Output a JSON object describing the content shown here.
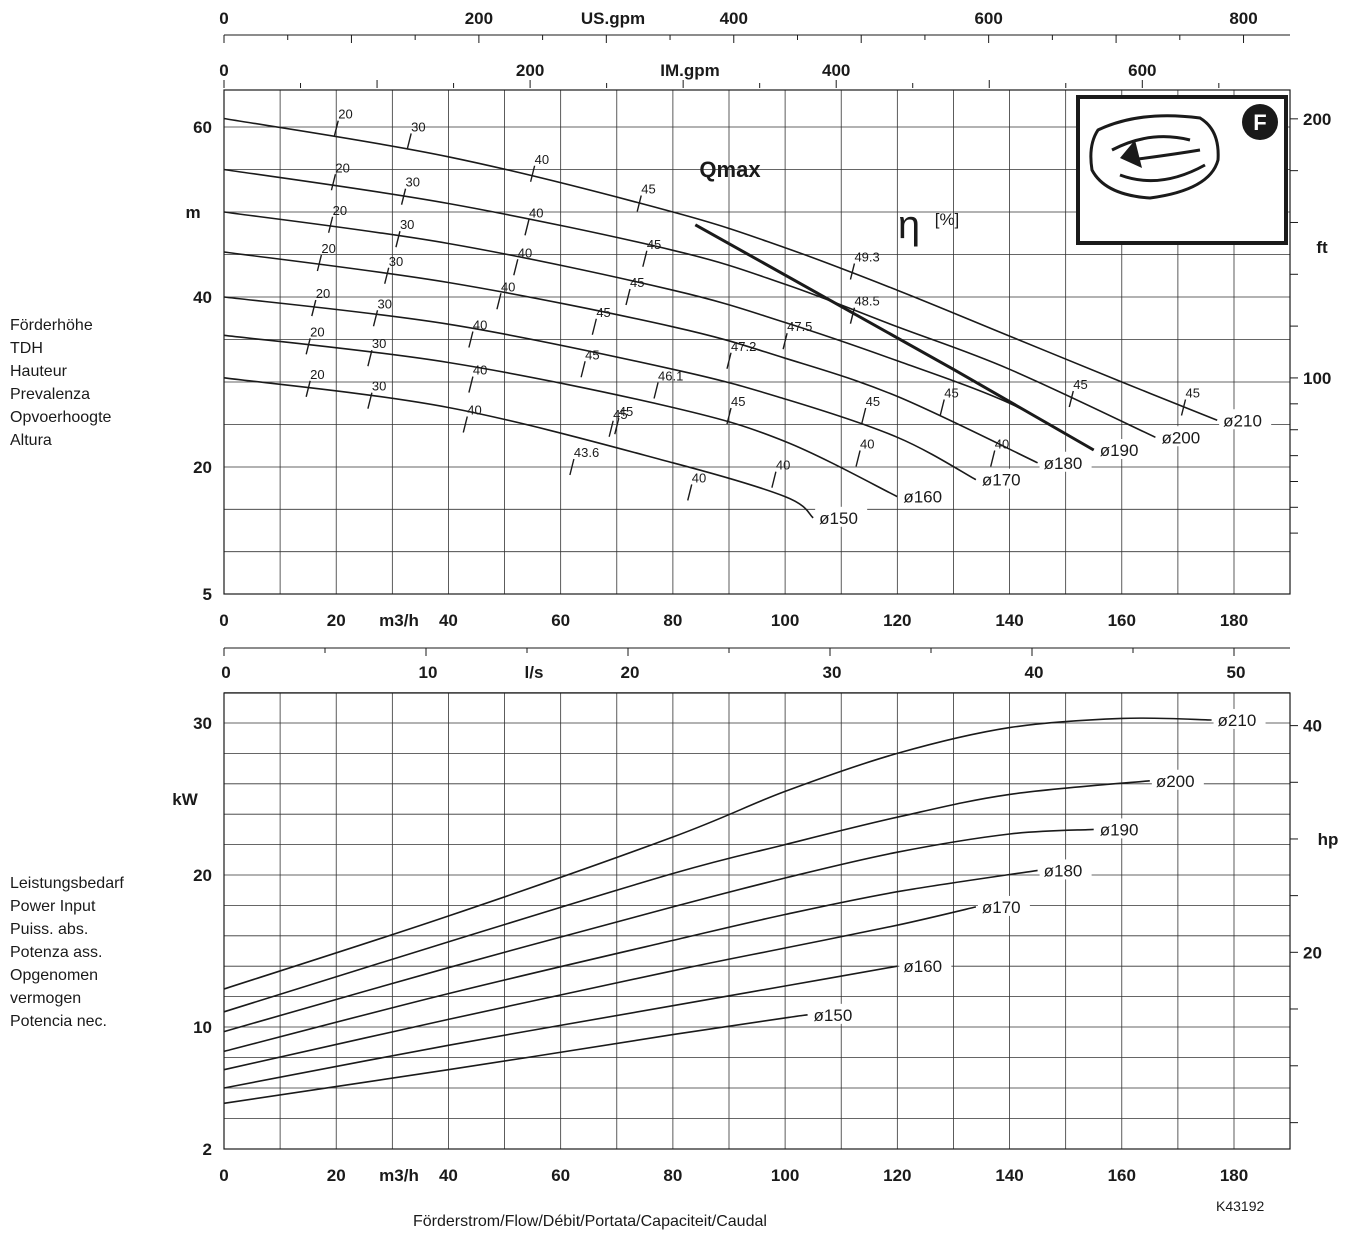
{
  "left_labels": {
    "head": [
      "Förderhöhe",
      "TDH",
      "Hauteur",
      "Prevalenza",
      "Opvoerhoogte",
      "Altura"
    ],
    "power": [
      "Leistungsbedarf",
      "Power Input",
      "Puiss. abs.",
      "Potenza ass.",
      "Opgenomen",
      "vermogen",
      "Potencia nec."
    ]
  },
  "footer": {
    "flow_label": "Förderstrom/Flow/Débit/Portata/Capaciteit/Caudal",
    "code": "K43192"
  },
  "colors": {
    "ink": "#1a1a1a",
    "grid": "#333333"
  },
  "chart_data": [
    {
      "type": "line",
      "name": "head-curves",
      "x_unit": "m3/h",
      "xlim": [
        0,
        190
      ],
      "ylim": [
        5,
        70
      ],
      "axes": {
        "bottom": {
          "label": "m3/h",
          "ticks": [
            0,
            20,
            40,
            60,
            80,
            100,
            120,
            140,
            160,
            180
          ]
        },
        "top_us": {
          "label": "US.gpm",
          "ticks": [
            0,
            200,
            400,
            600,
            800
          ]
        },
        "top_im": {
          "label": "IM.gpm",
          "ticks": [
            0,
            200,
            400,
            600
          ]
        },
        "left": {
          "label": "m",
          "ticks": [
            5,
            20,
            40,
            60
          ]
        },
        "right": {
          "label": "ft",
          "ticks": [
            100,
            200
          ]
        }
      },
      "annotations": {
        "qmax": "Qmax",
        "eta": "η",
        "eta_unit": "[%]",
        "badge": "F"
      },
      "series": [
        {
          "name": "ø210",
          "x": [
            0,
            40,
            80,
            100,
            120,
            140,
            160,
            177
          ],
          "y": [
            61,
            56.5,
            50,
            45.8,
            40.8,
            35.4,
            30,
            25.5
          ]
        },
        {
          "name": "ø200",
          "x": [
            0,
            40,
            80,
            100,
            120,
            140,
            166
          ],
          "y": [
            55,
            51,
            45.5,
            41.5,
            36.5,
            31.5,
            23.5
          ]
        },
        {
          "name": "ø190",
          "x": [
            0,
            40,
            80,
            100,
            120,
            140,
            155
          ],
          "y": [
            50,
            46.3,
            40.8,
            37,
            32.5,
            27.5,
            22
          ]
        },
        {
          "name": "ø180",
          "x": [
            0,
            40,
            80,
            100,
            120,
            145
          ],
          "y": [
            45.3,
            41.7,
            36.5,
            32.8,
            28.3,
            20.5
          ]
        },
        {
          "name": "ø170",
          "x": [
            0,
            40,
            80,
            100,
            120,
            134
          ],
          "y": [
            40,
            36.8,
            31.5,
            28,
            23.5,
            18.5
          ]
        },
        {
          "name": "ø160",
          "x": [
            0,
            40,
            80,
            100,
            120
          ],
          "y": [
            35.5,
            32.3,
            27,
            23,
            16.5
          ]
        },
        {
          "name": "ø150",
          "x": [
            0,
            40,
            80,
            100,
            105
          ],
          "y": [
            30.5,
            27,
            20.5,
            16.5,
            14
          ]
        }
      ],
      "efficiency_marks": [
        {
          "label": "20",
          "x": 20,
          "y": 59.8
        },
        {
          "label": "30",
          "x": 33,
          "y": 58.3
        },
        {
          "label": "40",
          "x": 55,
          "y": 54.5
        },
        {
          "label": "45",
          "x": 74,
          "y": 51
        },
        {
          "label": "49.3",
          "x": 112,
          "y": 43
        },
        {
          "label": "45",
          "x": 171,
          "y": 27
        },
        {
          "label": "20",
          "x": 19.5,
          "y": 53.5
        },
        {
          "label": "30",
          "x": 32,
          "y": 51.8
        },
        {
          "label": "40",
          "x": 54,
          "y": 48.2
        },
        {
          "label": "45",
          "x": 75,
          "y": 44.5
        },
        {
          "label": "48.5",
          "x": 112,
          "y": 37.8
        },
        {
          "label": "45",
          "x": 151,
          "y": 28
        },
        {
          "label": "20",
          "x": 19,
          "y": 48.5
        },
        {
          "label": "30",
          "x": 31,
          "y": 46.8
        },
        {
          "label": "40",
          "x": 52,
          "y": 43.5
        },
        {
          "label": "45",
          "x": 72,
          "y": 40
        },
        {
          "label": "47.5",
          "x": 100,
          "y": 34.8
        },
        {
          "label": "45",
          "x": 128,
          "y": 27
        },
        {
          "label": "20",
          "x": 17,
          "y": 44
        },
        {
          "label": "30",
          "x": 29,
          "y": 42.5
        },
        {
          "label": "40",
          "x": 49,
          "y": 39.5
        },
        {
          "label": "45",
          "x": 66,
          "y": 36.5
        },
        {
          "label": "47.2",
          "x": 90,
          "y": 32.5
        },
        {
          "label": "45",
          "x": 114,
          "y": 26
        },
        {
          "label": "40",
          "x": 137,
          "y": 21
        },
        {
          "label": "20",
          "x": 16,
          "y": 38.7
        },
        {
          "label": "30",
          "x": 27,
          "y": 37.5
        },
        {
          "label": "40",
          "x": 44,
          "y": 35
        },
        {
          "label": "45",
          "x": 64,
          "y": 31.5
        },
        {
          "label": "46.1",
          "x": 77,
          "y": 29
        },
        {
          "label": "45",
          "x": 90,
          "y": 26
        },
        {
          "label": "40",
          "x": 113,
          "y": 21
        },
        {
          "label": "20",
          "x": 15,
          "y": 34.2
        },
        {
          "label": "30",
          "x": 26,
          "y": 32.8
        },
        {
          "label": "40",
          "x": 44,
          "y": 29.7
        },
        {
          "label": "45",
          "x": 69,
          "y": 24.5
        },
        {
          "label": "40",
          "x": 98,
          "y": 18.5
        },
        {
          "label": "20",
          "x": 15,
          "y": 29.2
        },
        {
          "label": "30",
          "x": 26,
          "y": 27.8
        },
        {
          "label": "40",
          "x": 43,
          "y": 25
        },
        {
          "label": "45",
          "x": 70,
          "y": 24.8
        },
        {
          "label": "43.6",
          "x": 62,
          "y": 20
        },
        {
          "label": "40",
          "x": 83,
          "y": 17
        }
      ],
      "qmax_line": {
        "x": [
          84,
          130,
          155
        ],
        "y": [
          48.5,
          31.5,
          22
        ]
      }
    },
    {
      "type": "line",
      "name": "power-curves",
      "x_unit": "m3/h",
      "xlim": [
        0,
        190
      ],
      "ylim": [
        2,
        32
      ],
      "axes": {
        "bottom": {
          "label": "m3/h",
          "ticks": [
            0,
            20,
            40,
            60,
            80,
            100,
            120,
            140,
            160,
            180
          ]
        },
        "top_ls": {
          "label": "l/s",
          "ticks": [
            0,
            10,
            20,
            30,
            40,
            50
          ]
        },
        "left": {
          "label": "kW",
          "ticks": [
            2,
            10,
            20,
            30
          ]
        },
        "right": {
          "label": "hp",
          "ticks": [
            20,
            40
          ]
        }
      },
      "series": [
        {
          "name": "ø210",
          "x": [
            0,
            40,
            80,
            100,
            120,
            140,
            160,
            176
          ],
          "y": [
            12.5,
            17.3,
            22.5,
            25.5,
            28.0,
            29.7,
            30.3,
            30.2
          ]
        },
        {
          "name": "ø200",
          "x": [
            0,
            40,
            80,
            100,
            120,
            140,
            165
          ],
          "y": [
            11.0,
            15.6,
            20.1,
            22.0,
            23.8,
            25.3,
            26.2
          ]
        },
        {
          "name": "ø190",
          "x": [
            0,
            40,
            80,
            100,
            120,
            140,
            155
          ],
          "y": [
            9.7,
            13.9,
            17.9,
            19.8,
            21.5,
            22.7,
            23.0
          ]
        },
        {
          "name": "ø180",
          "x": [
            0,
            40,
            80,
            100,
            120,
            145
          ],
          "y": [
            8.4,
            12.2,
            15.7,
            17.4,
            18.9,
            20.3
          ]
        },
        {
          "name": "ø170",
          "x": [
            0,
            40,
            80,
            100,
            120,
            134
          ],
          "y": [
            7.2,
            10.5,
            13.7,
            15.2,
            16.7,
            17.9
          ]
        },
        {
          "name": "ø160",
          "x": [
            0,
            40,
            80,
            100,
            120
          ],
          "y": [
            6.0,
            8.8,
            11.4,
            12.7,
            14.0
          ]
        },
        {
          "name": "ø150",
          "x": [
            0,
            40,
            80,
            100,
            104
          ],
          "y": [
            5.0,
            7.2,
            9.5,
            10.6,
            10.8
          ]
        }
      ]
    }
  ]
}
